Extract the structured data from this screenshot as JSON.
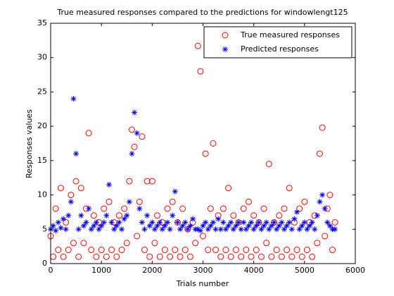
{
  "chart_data": {
    "type": "scatter",
    "title": "True measured responses compared to the predictions for windowlengt125",
    "x_label": "Trials number",
    "y_label": "Responses values",
    "x": [
      0,
      50,
      100,
      150,
      200,
      250,
      300,
      350,
      400,
      450,
      500,
      550,
      600,
      650,
      700,
      750,
      800,
      850,
      900,
      950,
      1000,
      1050,
      1100,
      1150,
      1200,
      1250,
      1300,
      1350,
      1400,
      1450,
      1500,
      1550,
      1600,
      1650,
      1700,
      1750,
      1800,
      1850,
      1900,
      1950,
      2000,
      2050,
      2100,
      2150,
      2200,
      2250,
      2300,
      2350,
      2400,
      2450,
      2500,
      2550,
      2600,
      2650,
      2700,
      2750,
      2800,
      2850,
      2900,
      2950,
      3000,
      3050,
      3100,
      3150,
      3200,
      3250,
      3300,
      3350,
      3400,
      3450,
      3500,
      3550,
      3600,
      3650,
      3700,
      3750,
      3800,
      3850,
      3900,
      3950,
      4000,
      4050,
      4100,
      4150,
      4200,
      4250,
      4300,
      4350,
      4400,
      4450,
      4500,
      4550,
      4600,
      4650,
      4700,
      4750,
      4800,
      4850,
      4900,
      4950,
      5000,
      5050,
      5100,
      5150,
      5200,
      5250,
      5300,
      5350,
      5400,
      5450,
      5500,
      5550,
      5600
    ],
    "series": [
      {
        "name": "True measured responses",
        "color": "#ff0000",
        "marker": "o",
        "values": [
          4,
          1,
          8,
          2,
          11,
          1,
          6,
          2,
          10,
          3,
          12,
          1,
          11,
          3,
          8,
          19,
          2,
          7,
          1,
          6,
          2,
          8,
          1,
          9,
          2,
          6,
          1,
          7,
          2,
          8,
          3,
          12,
          19.5,
          17,
          4,
          9,
          18.5,
          2,
          12,
          1,
          12,
          3,
          7,
          1,
          6,
          2,
          8,
          1,
          9,
          2,
          6,
          1,
          8,
          2,
          5,
          1,
          6,
          3,
          31.7,
          28,
          4,
          16,
          2,
          8,
          17.5,
          2,
          7,
          1,
          8,
          2,
          11,
          1,
          7,
          2,
          6,
          1,
          8,
          2,
          9,
          1,
          7,
          2,
          6,
          1,
          8,
          3,
          14.5,
          1,
          6,
          2,
          7,
          1,
          8,
          2,
          11,
          1,
          6,
          2,
          8,
          1,
          9,
          2,
          6,
          1,
          7,
          3,
          16,
          19.8,
          4,
          8,
          10,
          2,
          6
        ]
      },
      {
        "name": "Predicted responses",
        "color": "#0000ff",
        "marker": "*",
        "values": [
          5,
          5.5,
          4.8,
          6,
          5.2,
          6.5,
          5,
          7,
          9,
          24,
          16,
          5,
          7,
          5.5,
          6,
          8,
          5,
          5.5,
          6,
          5,
          5.5,
          6,
          7,
          11.5,
          6,
          5,
          5.5,
          6,
          5,
          6.5,
          7,
          9,
          16,
          22,
          19,
          8,
          6,
          5,
          7,
          5.5,
          6,
          5,
          5.5,
          6,
          5,
          5.5,
          6,
          5,
          7,
          10.5,
          6,
          5,
          5.5,
          6,
          5,
          5.5,
          6.5,
          5,
          5,
          4.8,
          5.5,
          6,
          5,
          5.5,
          6,
          5,
          6.5,
          5,
          6,
          5,
          5.5,
          6,
          5,
          5.5,
          6,
          5,
          6,
          5,
          5.5,
          6,
          5,
          5.5,
          6,
          5,
          5.5,
          6,
          5,
          5.5,
          6,
          5,
          5.5,
          6,
          5,
          5.5,
          6,
          5,
          6.5,
          7.5,
          5,
          5.5,
          6,
          5,
          5.5,
          6,
          5,
          7,
          9,
          10,
          8,
          6,
          5.5,
          5,
          5
        ]
      }
    ],
    "xlim": [
      0,
      6000
    ],
    "xticks": [
      0,
      1000,
      2000,
      3000,
      4000,
      5000,
      6000
    ],
    "ylim": [
      0,
      35
    ],
    "yticks": [
      0,
      5,
      10,
      15,
      20,
      25,
      30,
      35
    ],
    "legend": "top-right",
    "grid": false
  }
}
